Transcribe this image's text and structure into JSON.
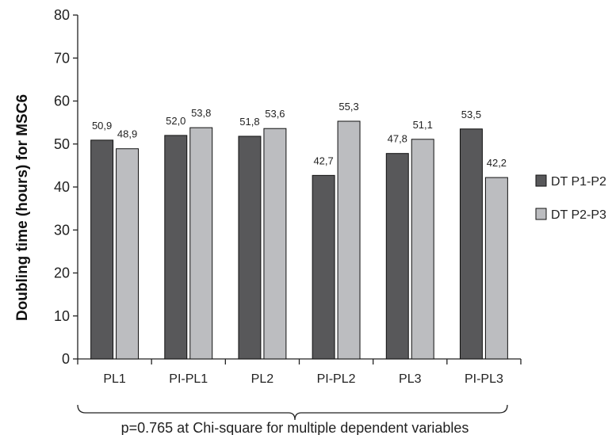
{
  "chart_data": {
    "type": "bar",
    "categories": [
      "PL1",
      "PI-PL1",
      "PL2",
      "PI-PL2",
      "PL3",
      "PI-PL3"
    ],
    "series": [
      {
        "name": "DT P1-P2",
        "values": [
          50.9,
          52.0,
          51.8,
          42.7,
          47.8,
          53.5
        ],
        "labels": [
          "50,9",
          "52,0",
          "51,8",
          "42,7",
          "47,8",
          "53,5"
        ],
        "color": "#58585a"
      },
      {
        "name": "DT P2-P3",
        "values": [
          48.9,
          53.8,
          53.6,
          55.3,
          51.1,
          42.2
        ],
        "labels": [
          "48,9",
          "53,8",
          "53,6",
          "55,3",
          "51,1",
          "42,2"
        ],
        "color": "#bcbdc0"
      }
    ],
    "ylabel": "Doubling time (hours) for MSC6",
    "xlabel": "",
    "ylim": [
      0,
      80
    ],
    "yticks": [
      0,
      10,
      20,
      30,
      40,
      50,
      60,
      70,
      80
    ],
    "grid": false,
    "legend_position": "right",
    "footnote": "p=0.765 at Chi-square for multiple dependent variables"
  }
}
